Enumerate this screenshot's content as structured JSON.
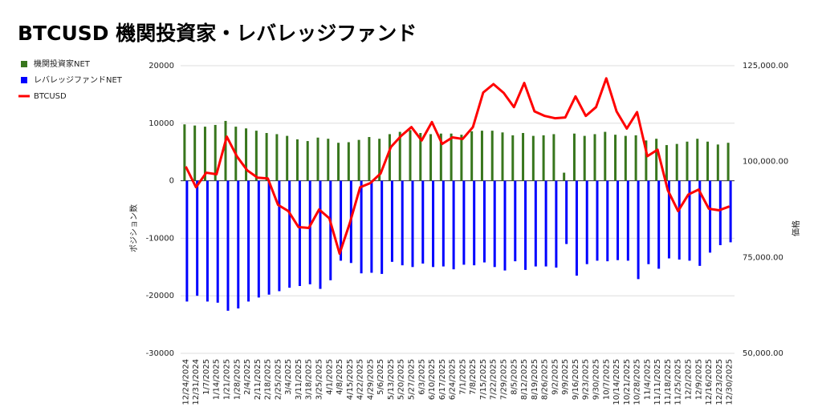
{
  "chart_data": {
    "type": "bar_line",
    "title": "BTCUSD  機関投資家・レバレッジファンド",
    "y_label": "ポジション数",
    "y2_label": "価格",
    "categories": [
      "12/24/2024",
      "12/31/2024",
      "1/7/2025",
      "1/14/2025",
      "1/21/2025",
      "1/28/2025",
      "2/4/2025",
      "2/11/2025",
      "2/18/2025",
      "2/25/2025",
      "3/4/2025",
      "3/11/2025",
      "3/18/2025",
      "3/25/2025",
      "4/1/2025",
      "4/8/2025",
      "4/15/2025",
      "4/22/2025",
      "4/29/2025",
      "5/6/2025",
      "5/13/2025",
      "5/20/2025",
      "5/27/2025",
      "6/3/2025",
      "6/10/2025",
      "6/17/2025",
      "6/24/2025",
      "7/1/2025",
      "7/8/2025",
      "7/15/2025",
      "7/22/2025",
      "7/29/2025",
      "8/5/2025",
      "8/12/2025",
      "8/19/2025",
      "8/26/2025",
      "9/2/2025",
      "9/9/2025",
      "9/16/2025",
      "9/23/2025",
      "9/30/2025",
      "10/7/2025",
      "10/14/2025",
      "10/21/2025",
      "10/28/2025",
      "11/4/2025",
      "11/11/2025",
      "11/18/2025",
      "11/25/2025",
      "12/2/2025",
      "12/9/2025",
      "12/16/2025",
      "12/23/2025",
      "12/30/2025"
    ],
    "series": [
      {
        "name": "機関投資家NET",
        "color": "#38761d",
        "kind": "bar",
        "values": [
          9800,
          9600,
          9400,
          9700,
          10400,
          9400,
          9100,
          8700,
          8300,
          8100,
          7800,
          7200,
          6900,
          7500,
          7300,
          6600,
          6700,
          7100,
          7600,
          7300,
          8100,
          8500,
          8800,
          8300,
          8100,
          8200,
          8200,
          8000,
          8600,
          8700,
          8700,
          8400,
          7900,
          8300,
          7800,
          7900,
          8100,
          1400,
          8200,
          7800,
          8100,
          8500,
          8000,
          7800,
          7900,
          7000,
          7300,
          6200,
          6400,
          6800,
          7300,
          6800,
          6300,
          6600
        ]
      },
      {
        "name": "レバレッジファンドNET",
        "color": "#0000ff",
        "kind": "bar",
        "values": [
          -21000,
          -20000,
          -21000,
          -21200,
          -22600,
          -22200,
          -21000,
          -20300,
          -19800,
          -19200,
          -18600,
          -18300,
          -18000,
          -18800,
          -17300,
          -13900,
          -14300,
          -16100,
          -16000,
          -16200,
          -14100,
          -14700,
          -15000,
          -14400,
          -15000,
          -14900,
          -15400,
          -14600,
          -14700,
          -14200,
          -15000,
          -15600,
          -14000,
          -15500,
          -14900,
          -14900,
          -15100,
          -11000,
          -16500,
          -14500,
          -13900,
          -14000,
          -13800,
          -13900,
          -17100,
          -14500,
          -15300,
          -13500,
          -13700,
          -13900,
          -14800,
          -12500,
          -11200,
          -10700
        ]
      },
      {
        "name": "BTCUSD",
        "color": "#ff0000",
        "kind": "line",
        "axis": "y2",
        "values": [
          98700,
          93300,
          97100,
          96700,
          106500,
          101300,
          97700,
          95800,
          95600,
          88700,
          87100,
          82900,
          82700,
          87500,
          85200,
          76000,
          84000,
          93300,
          94400,
          96900,
          103800,
          106700,
          109000,
          105500,
          110300,
          104600,
          106300,
          105900,
          109000,
          118000,
          120200,
          117900,
          114200,
          120500,
          113100,
          111900,
          111300,
          111500,
          117000,
          111900,
          114200,
          121700,
          113100,
          108600,
          112900,
          101400,
          103100,
          92500,
          87100,
          91400,
          92700,
          87700,
          87300,
          88300
        ]
      }
    ],
    "ylim": [
      -30000,
      20000
    ],
    "yticks": [
      -30000,
      -20000,
      -10000,
      0,
      10000,
      20000
    ],
    "y2lim": [
      50000,
      125000
    ],
    "y2ticks": [
      {
        "value": 50000,
        "label": "50,000.00"
      },
      {
        "value": 75000,
        "label": "75,000.00"
      },
      {
        "value": 100000,
        "label": "100,000.00"
      },
      {
        "value": 125000,
        "label": "125,000.00"
      }
    ],
    "grid": true,
    "legend": "left"
  }
}
